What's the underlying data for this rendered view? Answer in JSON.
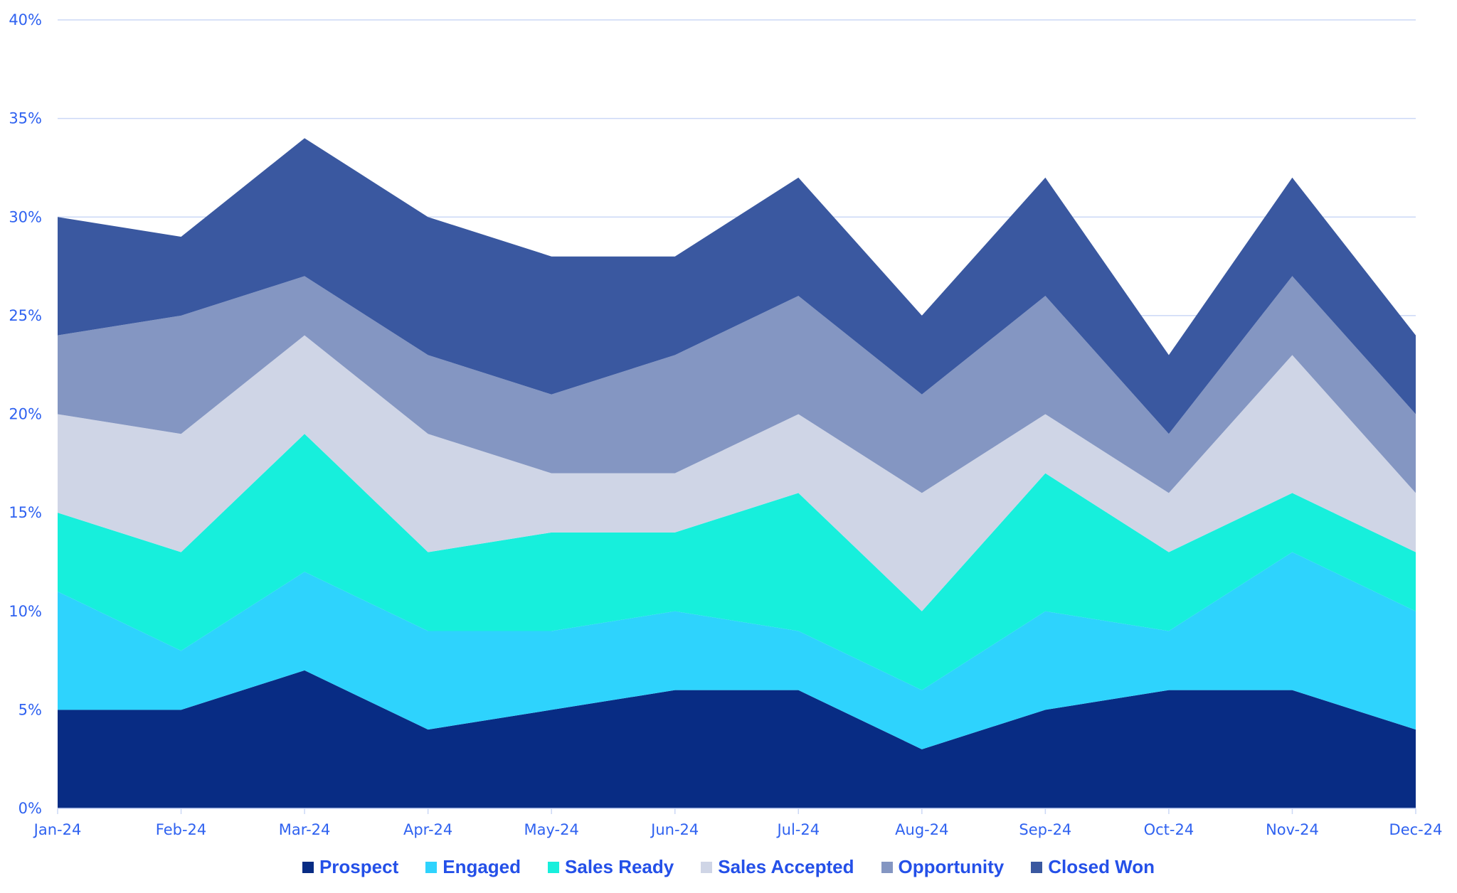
{
  "chart_data": {
    "type": "area",
    "stacked": true,
    "categories": [
      "Jan-24",
      "Feb-24",
      "Mar-24",
      "Apr-24",
      "May-24",
      "Jun-24",
      "Jul-24",
      "Aug-24",
      "Sep-24",
      "Oct-24",
      "Nov-24",
      "Dec-24"
    ],
    "series": [
      {
        "name": "Prospect",
        "color": "#082c84",
        "values": [
          5,
          5,
          7,
          4,
          5,
          6,
          6,
          3,
          5,
          6,
          6,
          4
        ]
      },
      {
        "name": "Engaged",
        "color": "#2ed3fd",
        "values": [
          6,
          3,
          5,
          5,
          4,
          4,
          3,
          3,
          5,
          3,
          7,
          6
        ]
      },
      {
        "name": "Sales Ready",
        "color": "#17efdc",
        "values": [
          4,
          5,
          7,
          4,
          5,
          4,
          7,
          4,
          7,
          4,
          3,
          3
        ]
      },
      {
        "name": "Sales Accepted",
        "color": "#cfd5e6",
        "values": [
          5,
          6,
          5,
          6,
          3,
          3,
          4,
          6,
          3,
          3,
          7,
          3
        ]
      },
      {
        "name": "Opportunity",
        "color": "#8496c2",
        "values": [
          4,
          6,
          3,
          4,
          4,
          6,
          6,
          5,
          6,
          3,
          4,
          4
        ]
      },
      {
        "name": "Closed Won",
        "color": "#3a58a0",
        "values": [
          6,
          4,
          7,
          7,
          7,
          5,
          6,
          4,
          6,
          4,
          5,
          4
        ]
      }
    ],
    "ylim": [
      0,
      40
    ],
    "yticks": [
      "0%",
      "5%",
      "10%",
      "15%",
      "20%",
      "25%",
      "30%",
      "35%",
      "40%"
    ],
    "grid": true,
    "legend": "bottom",
    "title": "",
    "xlabel": "",
    "ylabel": ""
  }
}
